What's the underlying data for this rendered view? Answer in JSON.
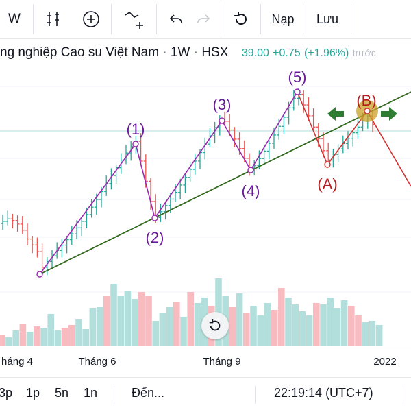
{
  "toolbar": {
    "interval_label": "W",
    "load_label": "Nạp",
    "save_label": "Lưu"
  },
  "legend": {
    "title": "ng nghiệp Cao su Việt Nam",
    "interval": "1W",
    "exchange": "HSX",
    "price": "39.00",
    "change": "+0.75",
    "change_pct": "(+1.96%)",
    "faded_text": "trước"
  },
  "wave_labels": {
    "w1": "(1)",
    "w2": "(2)",
    "w3": "(3)",
    "w4": "(4)",
    "w5": "(5)",
    "wa": "(A)",
    "wb": "(B)"
  },
  "x_axis": {
    "ticks": [
      "háng 4",
      "Tháng 6",
      "Tháng 9",
      "2022"
    ]
  },
  "bottom_bar": {
    "ranges": [
      "3p",
      "1p",
      "5n",
      "1n"
    ],
    "goto_label": "Đến...",
    "clock": "22:19:14 (UTC+7)"
  },
  "colors": {
    "up": "#26a69a",
    "down": "#ef5350",
    "volume_up": "#b2dfdb",
    "volume_down": "#f8bbc0",
    "impulse_wave": "#9c27b0",
    "corrective_wave": "#d32f2f",
    "trendline": "#33691e",
    "arrow": "#2e7d32",
    "highlight": "#c9a227"
  },
  "chart_data": {
    "type": "candlestick",
    "symbol": "HSX",
    "interval": "1W",
    "last_price": 39.0,
    "change": 0.75,
    "change_pct": 1.96,
    "x_ticks": [
      "háng 4",
      "Tháng 6",
      "Tháng 9",
      "2022"
    ],
    "wave_pattern": [
      "(1)",
      "(2)",
      "(3)",
      "(4)",
      "(5)",
      "(A)",
      "(B)"
    ]
  }
}
